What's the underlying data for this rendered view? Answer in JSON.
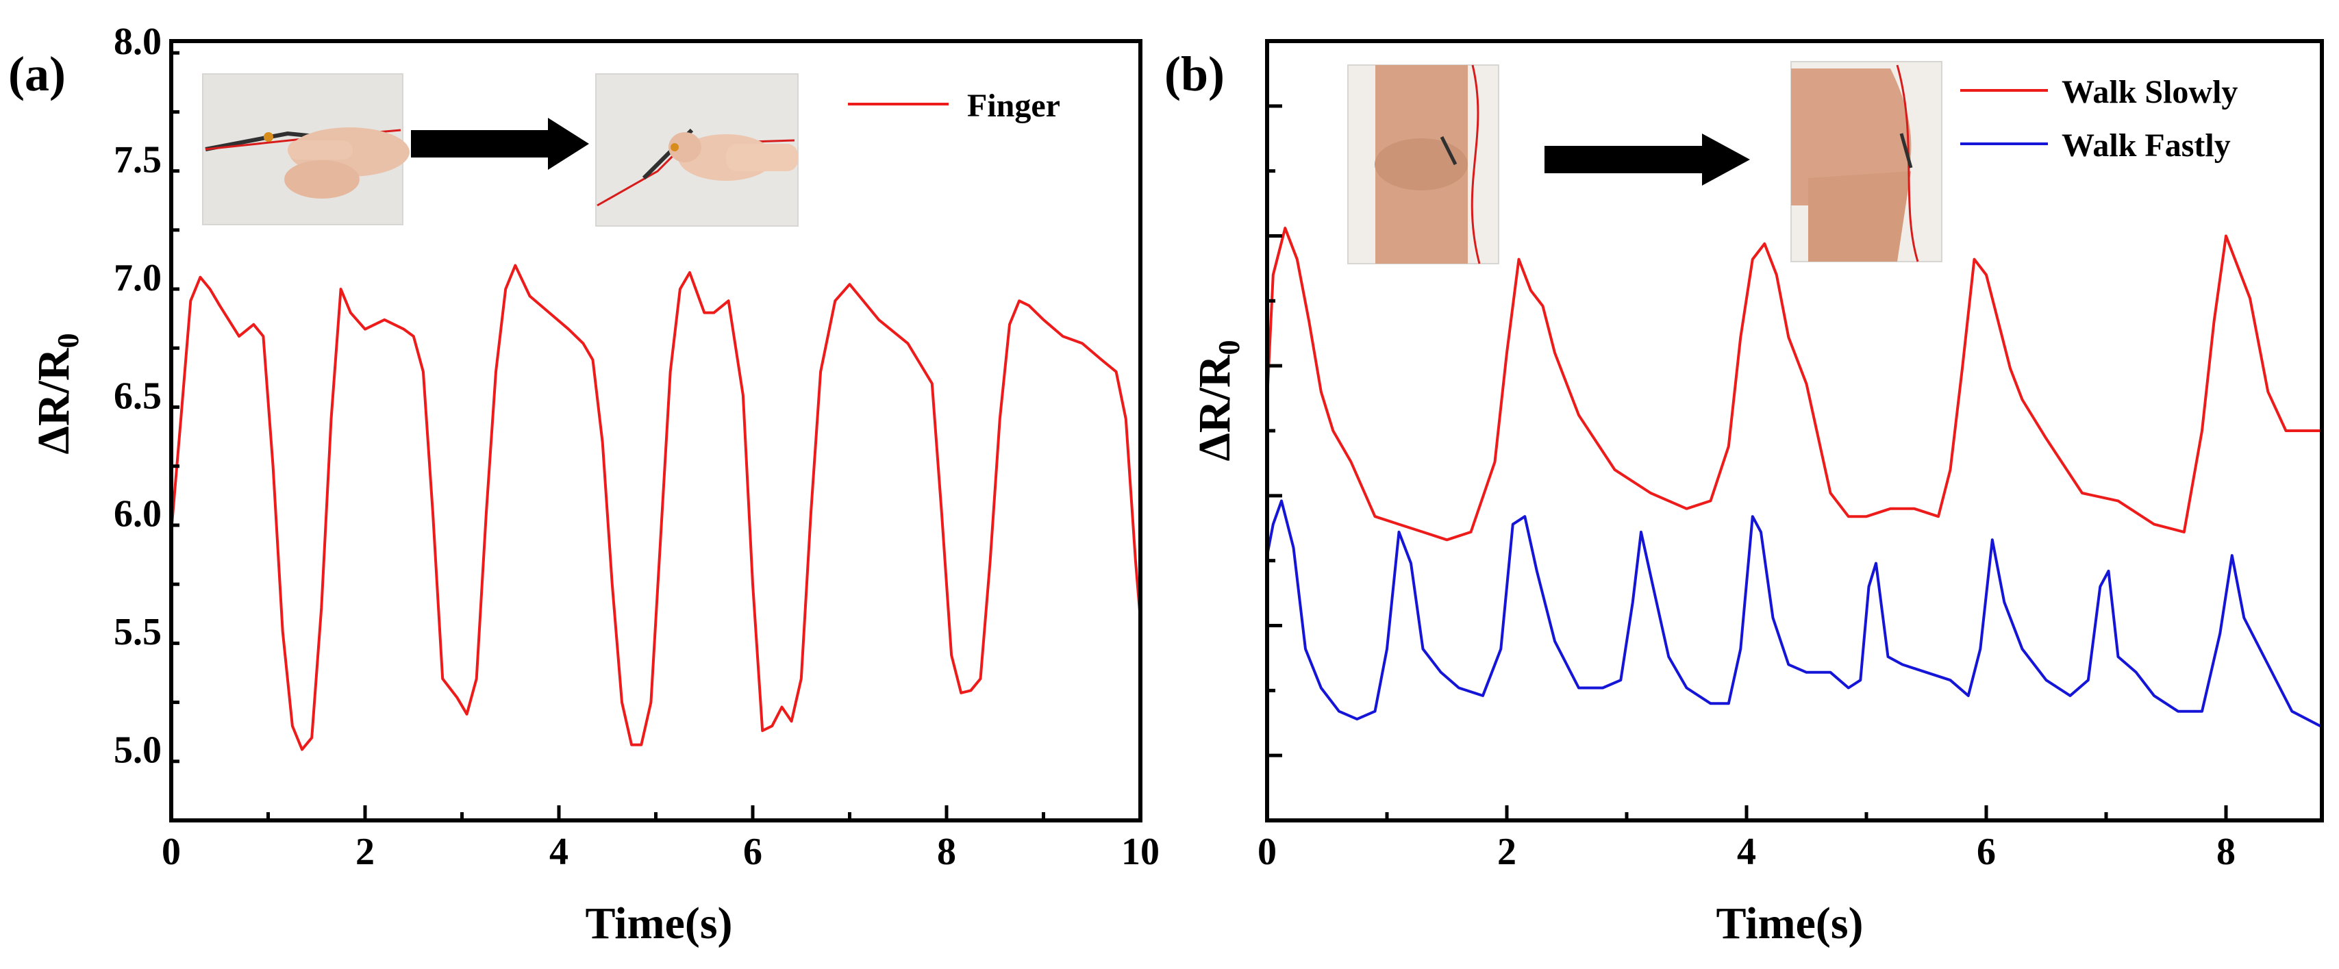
{
  "colors": {
    "red": "#ee1b1b",
    "blue": "#1515d8",
    "axis": "#000000",
    "arrow": "#000000"
  },
  "chart_data": [
    {
      "type": "line",
      "panel_label": "(a)",
      "title": "",
      "xlabel": "Time(s)",
      "ylabel": "ΔR/R",
      "ylabel_sub": "0",
      "xlim": [
        0,
        10
      ],
      "ylim": [
        4.7,
        8.0
      ],
      "x_ticks": [
        0,
        2,
        4,
        6,
        8,
        10
      ],
      "x_tick_labels": [
        "0",
        "2",
        "4",
        "6",
        "8",
        "10"
      ],
      "y_ticks": [
        5.0,
        5.5,
        6.0,
        6.5,
        7.0,
        7.5,
        8.0
      ],
      "y_tick_labels": [
        "5.0",
        "5.5",
        "6.0",
        "6.5",
        "7.0",
        "7.5",
        "8.0"
      ],
      "legend_position": "top-right",
      "inset_images": [
        "finger-straight-photo",
        "finger-bent-photo"
      ],
      "series": [
        {
          "name": "Finger",
          "color": "#ee1b1b",
          "x": [
            0,
            0.1,
            0.2,
            0.3,
            0.4,
            0.5,
            0.7,
            0.85,
            0.95,
            1.05,
            1.15,
            1.25,
            1.35,
            1.45,
            1.55,
            1.65,
            1.75,
            1.85,
            2.0,
            2.2,
            2.4,
            2.5,
            2.6,
            2.7,
            2.8,
            2.95,
            3.05,
            3.15,
            3.25,
            3.35,
            3.45,
            3.55,
            3.7,
            3.9,
            4.1,
            4.25,
            4.35,
            4.45,
            4.55,
            4.65,
            4.75,
            4.85,
            4.95,
            5.05,
            5.15,
            5.25,
            5.35,
            5.5,
            5.6,
            5.75,
            5.9,
            6.0,
            6.1,
            6.2,
            6.3,
            6.4,
            6.5,
            6.6,
            6.7,
            6.85,
            7.0,
            7.1,
            7.3,
            7.6,
            7.85,
            7.95,
            8.05,
            8.15,
            8.25,
            8.35,
            8.45,
            8.55,
            8.65,
            8.75,
            8.85,
            9.0,
            9.2,
            9.4,
            9.6,
            9.75,
            9.85,
            9.95,
            10.0
          ],
          "values": [
            5.92,
            6.4,
            6.9,
            7.0,
            6.95,
            6.88,
            6.75,
            6.8,
            6.75,
            6.2,
            5.5,
            5.1,
            5.0,
            5.05,
            5.6,
            6.4,
            6.95,
            6.85,
            6.78,
            6.82,
            6.78,
            6.75,
            6.6,
            6.0,
            5.3,
            5.22,
            5.15,
            5.3,
            6.0,
            6.6,
            6.95,
            7.05,
            6.92,
            6.85,
            6.78,
            6.72,
            6.65,
            6.3,
            5.7,
            5.2,
            5.02,
            5.02,
            5.2,
            5.9,
            6.6,
            6.95,
            7.02,
            6.85,
            6.85,
            6.9,
            6.5,
            5.7,
            5.08,
            5.1,
            5.18,
            5.12,
            5.3,
            6.0,
            6.6,
            6.9,
            6.97,
            6.92,
            6.82,
            6.72,
            6.55,
            6.0,
            5.4,
            5.24,
            5.25,
            5.3,
            5.8,
            6.4,
            6.8,
            6.9,
            6.88,
            6.82,
            6.75,
            6.72,
            6.65,
            6.6,
            6.4,
            5.8,
            5.55
          ]
        }
      ]
    },
    {
      "type": "line",
      "panel_label": "(b)",
      "title": "",
      "xlabel": "Time(s)",
      "ylabel": "ΔR/R",
      "ylabel_sub": "0",
      "xlim": [
        0,
        8.8
      ],
      "ylim": [
        0,
        1
      ],
      "x_ticks": [
        0,
        2,
        4,
        6,
        8
      ],
      "x_tick_labels": [
        "0",
        "2",
        "4",
        "6",
        "8"
      ],
      "legend_position": "top-right",
      "inset_images": [
        "knee-straight-photo",
        "knee-bent-photo"
      ],
      "series": [
        {
          "name": "Walk Slowly",
          "color": "#ee1b1b",
          "x": [
            0,
            0.05,
            0.15,
            0.25,
            0.35,
            0.45,
            0.55,
            0.7,
            0.9,
            1.1,
            1.3,
            1.5,
            1.7,
            1.9,
            2.0,
            2.1,
            2.2,
            2.3,
            2.4,
            2.6,
            2.9,
            3.2,
            3.5,
            3.7,
            3.85,
            3.95,
            4.05,
            4.15,
            4.25,
            4.35,
            4.5,
            4.7,
            4.85,
            5.0,
            5.2,
            5.4,
            5.6,
            5.7,
            5.8,
            5.9,
            6.0,
            6.1,
            6.2,
            6.3,
            6.5,
            6.8,
            7.1,
            7.4,
            7.65,
            7.8,
            7.9,
            8.0,
            8.1,
            8.2,
            8.35,
            8.5,
            8.8
          ],
          "values": [
            0.54,
            0.7,
            0.76,
            0.72,
            0.64,
            0.55,
            0.5,
            0.46,
            0.39,
            0.38,
            0.37,
            0.36,
            0.37,
            0.46,
            0.6,
            0.72,
            0.68,
            0.66,
            0.6,
            0.52,
            0.45,
            0.42,
            0.4,
            0.41,
            0.48,
            0.62,
            0.72,
            0.74,
            0.7,
            0.62,
            0.56,
            0.42,
            0.39,
            0.39,
            0.4,
            0.4,
            0.39,
            0.45,
            0.58,
            0.72,
            0.7,
            0.64,
            0.58,
            0.54,
            0.49,
            0.42,
            0.41,
            0.38,
            0.37,
            0.5,
            0.64,
            0.75,
            0.71,
            0.67,
            0.55,
            0.5,
            0.5
          ]
        },
        {
          "name": "Walk Fastly",
          "color": "#1515d8",
          "x": [
            0,
            0.05,
            0.12,
            0.22,
            0.32,
            0.45,
            0.6,
            0.75,
            0.9,
            1.0,
            1.1,
            1.2,
            1.3,
            1.45,
            1.6,
            1.8,
            1.95,
            2.05,
            2.15,
            2.25,
            2.4,
            2.6,
            2.8,
            2.95,
            3.05,
            3.12,
            3.22,
            3.35,
            3.5,
            3.7,
            3.85,
            3.95,
            4.05,
            4.12,
            4.22,
            4.35,
            4.5,
            4.7,
            4.85,
            4.95,
            5.02,
            5.08,
            5.18,
            5.3,
            5.5,
            5.7,
            5.85,
            5.95,
            6.05,
            6.15,
            6.3,
            6.5,
            6.7,
            6.85,
            6.95,
            7.02,
            7.1,
            7.25,
            7.4,
            7.6,
            7.8,
            7.95,
            8.05,
            8.15,
            8.35,
            8.55,
            8.8
          ],
          "values": [
            0.34,
            0.38,
            0.41,
            0.35,
            0.22,
            0.17,
            0.14,
            0.13,
            0.14,
            0.22,
            0.37,
            0.33,
            0.22,
            0.19,
            0.17,
            0.16,
            0.22,
            0.38,
            0.39,
            0.32,
            0.23,
            0.17,
            0.17,
            0.18,
            0.28,
            0.37,
            0.3,
            0.21,
            0.17,
            0.15,
            0.15,
            0.22,
            0.39,
            0.37,
            0.26,
            0.2,
            0.19,
            0.19,
            0.17,
            0.18,
            0.3,
            0.33,
            0.21,
            0.2,
            0.19,
            0.18,
            0.16,
            0.22,
            0.36,
            0.28,
            0.22,
            0.18,
            0.16,
            0.18,
            0.3,
            0.32,
            0.21,
            0.19,
            0.16,
            0.14,
            0.14,
            0.24,
            0.34,
            0.26,
            0.2,
            0.14,
            0.12
          ]
        }
      ]
    }
  ]
}
